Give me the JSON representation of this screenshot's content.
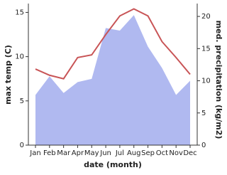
{
  "chart_data": {
    "type": "line-area",
    "x_label": "date (month)",
    "y_label": "max temp (C)",
    "y2_label": "med. precipitation (kg/m2)",
    "categories": [
      "Jan",
      "Feb",
      "Mar",
      "Apr",
      "May",
      "Jun",
      "Jul",
      "Aug",
      "Sep",
      "Oct",
      "Nov",
      "Dec"
    ],
    "series": [
      {
        "name": "med. precipitation",
        "axis": "y2",
        "kind": "area",
        "color": "#b0b9f0",
        "values": [
          7.8,
          10.7,
          8.1,
          9.8,
          10.3,
          18.2,
          17.8,
          20.2,
          15.3,
          12.0,
          7.8,
          10.0
        ]
      },
      {
        "name": "max temp",
        "kind": "line",
        "color": "#c85456",
        "values": [
          8.6,
          7.9,
          7.5,
          9.9,
          10.2,
          12.5,
          14.6,
          15.4,
          14.6,
          11.7,
          9.9,
          8.0
        ]
      }
    ],
    "ylim": [
      0,
      16
    ],
    "yticks": [
      0,
      5,
      10,
      15
    ],
    "y2lim": [
      0,
      22
    ],
    "y2ticks": [
      0,
      5,
      10,
      15,
      20
    ]
  }
}
